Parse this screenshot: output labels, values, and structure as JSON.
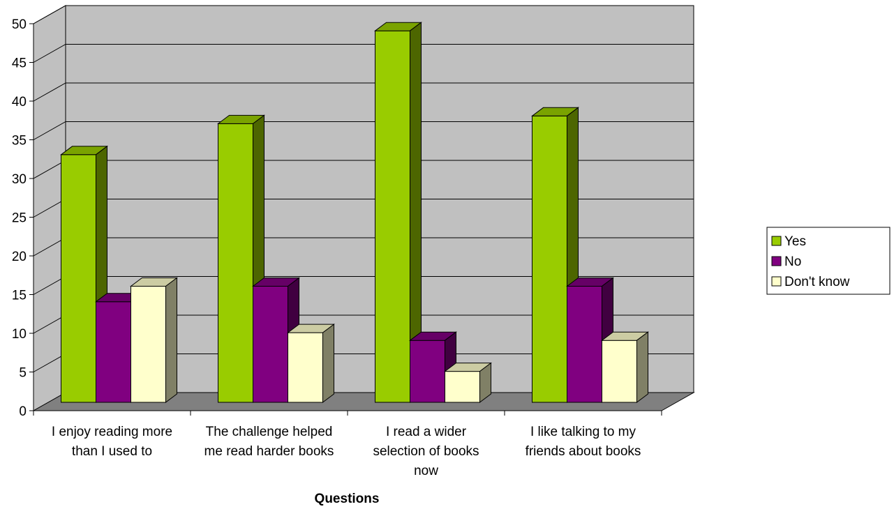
{
  "chart_data": {
    "type": "bar",
    "three_d": true,
    "title": "",
    "xlabel": "Questions",
    "ylabel": "",
    "ylim": [
      0,
      50
    ],
    "y_ticks": [
      0,
      5,
      10,
      15,
      20,
      25,
      30,
      35,
      40,
      45,
      50
    ],
    "grid": true,
    "legend_position": "right",
    "categories": [
      [
        "I enjoy reading more",
        "than I used to"
      ],
      [
        "The challenge helped",
        "me read harder books"
      ],
      [
        "I read a wider",
        "selection of books",
        "now"
      ],
      [
        "I like talking to my",
        "friends about books"
      ]
    ],
    "series": [
      {
        "name": "Yes",
        "color": "#99CC00",
        "values": [
          32,
          36,
          48,
          37
        ]
      },
      {
        "name": "No",
        "color": "#800080",
        "values": [
          13,
          15,
          8,
          15
        ]
      },
      {
        "name": "Don't know",
        "color": "#FFFFCC",
        "values": [
          15,
          9,
          4,
          8
        ]
      }
    ],
    "colors": {
      "wall": "#C0C0C0",
      "floor": "#808080",
      "gridline": "#000000"
    }
  }
}
